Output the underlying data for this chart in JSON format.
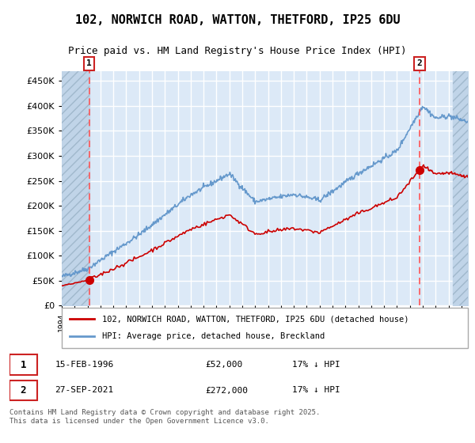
{
  "title": "102, NORWICH ROAD, WATTON, THETFORD, IP25 6DU",
  "subtitle": "Price paid vs. HM Land Registry's House Price Index (HPI)",
  "ylim": [
    0,
    470000
  ],
  "yticks": [
    0,
    50000,
    100000,
    150000,
    200000,
    250000,
    300000,
    350000,
    400000,
    450000
  ],
  "xlim_start": 1994.0,
  "xlim_end": 2025.5,
  "background_color": "#ffffff",
  "plot_bg_color": "#dce9f7",
  "hatch_bg_color": "#c0d4e8",
  "grid_color": "#ffffff",
  "legend1_label": "102, NORWICH ROAD, WATTON, THETFORD, IP25 6DU (detached house)",
  "legend2_label": "HPI: Average price, detached house, Breckland",
  "red_line_color": "#cc0000",
  "blue_line_color": "#6699cc",
  "dashed_line_color": "#ff5555",
  "annotation1": {
    "num": "1",
    "date": "15-FEB-1996",
    "price": "£52,000",
    "hpi": "17% ↓ HPI"
  },
  "annotation2": {
    "num": "2",
    "date": "27-SEP-2021",
    "price": "£272,000",
    "hpi": "17% ↓ HPI"
  },
  "footnote": "Contains HM Land Registry data © Crown copyright and database right 2025.\nThis data is licensed under the Open Government Licence v3.0.",
  "marker1_x": 1996.12,
  "marker1_y": 52000,
  "marker2_x": 2021.75,
  "marker2_y": 272000,
  "sale1_x": 1996.12,
  "sale1_y": 52000,
  "sale2_x": 2021.75,
  "sale2_y": 272000
}
